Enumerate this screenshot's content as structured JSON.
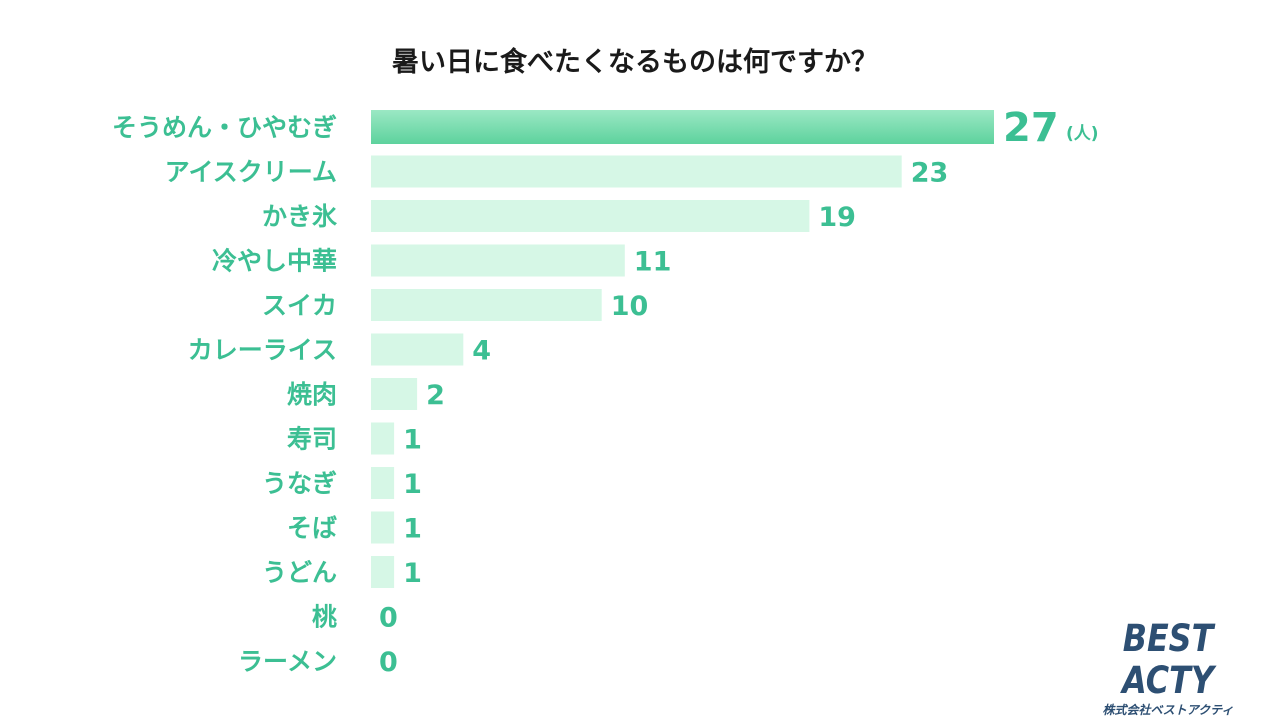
{
  "chart_data": {
    "type": "bar",
    "orientation": "horizontal",
    "title": "暑い日に食べたくなるものは何ですか？",
    "unit": "(人)",
    "categories": [
      "そうめん・ひやむぎ",
      "アイスクリーム",
      "かき氷",
      "冷やし中華",
      "スイカ",
      "カレーライス",
      "焼肉",
      "寿司",
      "うなぎ",
      "そば",
      "うどん",
      "桃",
      "ラーメン"
    ],
    "values": [
      27,
      23,
      19,
      11,
      10,
      4,
      2,
      1,
      1,
      1,
      1,
      0,
      0
    ],
    "xlim": [
      0,
      27
    ],
    "grid": false,
    "legend": "none"
  },
  "colors": {
    "top_bar_gradient": [
      "#9be8c4",
      "#5dd29d"
    ],
    "bar": "#d6f7e6",
    "label": "#3cbf93",
    "title": "#1a1a1a",
    "logo": "#2d4f73"
  },
  "logo": {
    "main": "BEST ACTY",
    "sub": "株式会社ベストアクティ"
  }
}
